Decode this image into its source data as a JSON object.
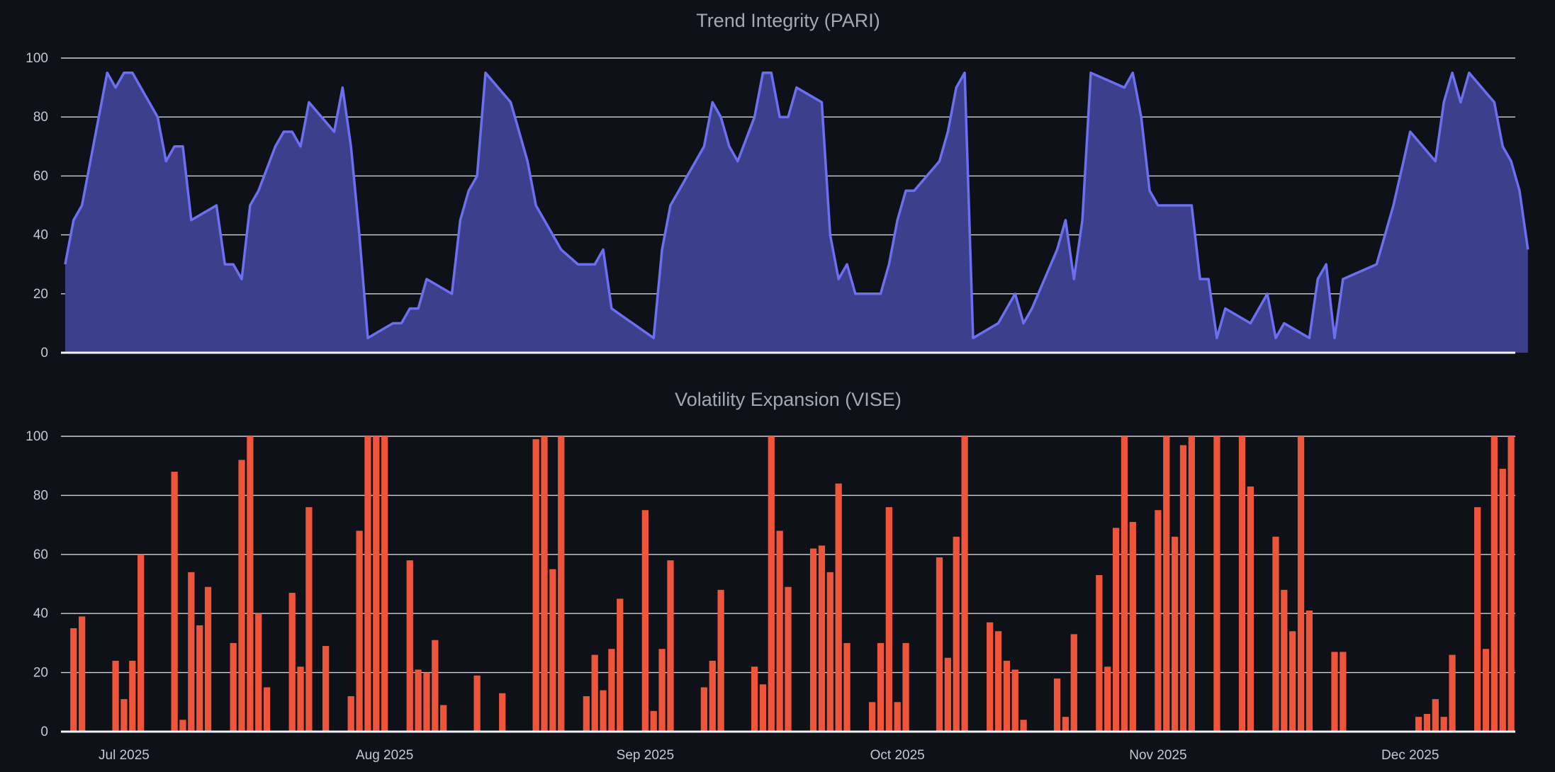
{
  "colors": {
    "background": "#0e1117",
    "area_line": "#6c6ff0",
    "area_fill": "#3b3f8c",
    "bar": "#ef553b"
  },
  "chart_data": [
    {
      "type": "area",
      "title": "Trend Integrity (PARI)",
      "ylim": [
        0,
        100
      ],
      "yticks": [
        0,
        20,
        40,
        60,
        80,
        100
      ],
      "grid": true,
      "x_start": "2025-06-24",
      "x_end": "2025-12-12",
      "xticks": [
        {
          "date": "2025-07-01",
          "label": "Jul 2025"
        },
        {
          "date": "2025-08-01",
          "label": "Aug 2025"
        },
        {
          "date": "2025-09-01",
          "label": "Sep 2025"
        },
        {
          "date": "2025-10-01",
          "label": "Oct 2025"
        },
        {
          "date": "2025-11-01",
          "label": "Nov 2025"
        },
        {
          "date": "2025-12-01",
          "label": "Dec 2025"
        }
      ],
      "x_tick_labels_visible": false,
      "points": [
        [
          "2025-06-24",
          30
        ],
        [
          "2025-06-25",
          45
        ],
        [
          "2025-06-26",
          50
        ],
        [
          "2025-06-27",
          65
        ],
        [
          "2025-06-28",
          80
        ],
        [
          "2025-06-29",
          95
        ],
        [
          "2025-06-30",
          90
        ],
        [
          "2025-07-01",
          95
        ],
        [
          "2025-07-02",
          95
        ],
        [
          "2025-07-05",
          80
        ],
        [
          "2025-07-06",
          65
        ],
        [
          "2025-07-07",
          70
        ],
        [
          "2025-07-08",
          70
        ],
        [
          "2025-07-09",
          45
        ],
        [
          "2025-07-12",
          50
        ],
        [
          "2025-07-13",
          30
        ],
        [
          "2025-07-14",
          30
        ],
        [
          "2025-07-15",
          25
        ],
        [
          "2025-07-16",
          50
        ],
        [
          "2025-07-17",
          55
        ],
        [
          "2025-07-19",
          70
        ],
        [
          "2025-07-20",
          75
        ],
        [
          "2025-07-21",
          75
        ],
        [
          "2025-07-22",
          70
        ],
        [
          "2025-07-23",
          85
        ],
        [
          "2025-07-26",
          75
        ],
        [
          "2025-07-27",
          90
        ],
        [
          "2025-07-28",
          70
        ],
        [
          "2025-07-29",
          40
        ],
        [
          "2025-07-30",
          5
        ],
        [
          "2025-08-02",
          10
        ],
        [
          "2025-08-03",
          10
        ],
        [
          "2025-08-04",
          15
        ],
        [
          "2025-08-05",
          15
        ],
        [
          "2025-08-06",
          25
        ],
        [
          "2025-08-09",
          20
        ],
        [
          "2025-08-10",
          45
        ],
        [
          "2025-08-11",
          55
        ],
        [
          "2025-08-12",
          60
        ],
        [
          "2025-08-13",
          95
        ],
        [
          "2025-08-16",
          85
        ],
        [
          "2025-08-18",
          65
        ],
        [
          "2025-08-19",
          50
        ],
        [
          "2025-08-22",
          35
        ],
        [
          "2025-08-24",
          30
        ],
        [
          "2025-08-26",
          30
        ],
        [
          "2025-08-27",
          35
        ],
        [
          "2025-08-28",
          15
        ],
        [
          "2025-09-02",
          5
        ],
        [
          "2025-09-03",
          35
        ],
        [
          "2025-09-04",
          50
        ],
        [
          "2025-09-05",
          55
        ],
        [
          "2025-09-08",
          70
        ],
        [
          "2025-09-09",
          85
        ],
        [
          "2025-09-10",
          80
        ],
        [
          "2025-09-11",
          70
        ],
        [
          "2025-09-12",
          65
        ],
        [
          "2025-09-14",
          80
        ],
        [
          "2025-09-15",
          95
        ],
        [
          "2025-09-16",
          95
        ],
        [
          "2025-09-17",
          80
        ],
        [
          "2025-09-18",
          80
        ],
        [
          "2025-09-19",
          90
        ],
        [
          "2025-09-22",
          85
        ],
        [
          "2025-09-23",
          40
        ],
        [
          "2025-09-24",
          25
        ],
        [
          "2025-09-25",
          30
        ],
        [
          "2025-09-26",
          20
        ],
        [
          "2025-09-29",
          20
        ],
        [
          "2025-09-30",
          30
        ],
        [
          "2025-10-01",
          45
        ],
        [
          "2025-10-02",
          55
        ],
        [
          "2025-10-03",
          55
        ],
        [
          "2025-10-06",
          65
        ],
        [
          "2025-10-07",
          75
        ],
        [
          "2025-10-08",
          90
        ],
        [
          "2025-10-09",
          95
        ],
        [
          "2025-10-10",
          5
        ],
        [
          "2025-10-13",
          10
        ],
        [
          "2025-10-15",
          20
        ],
        [
          "2025-10-16",
          10
        ],
        [
          "2025-10-17",
          15
        ],
        [
          "2025-10-20",
          35
        ],
        [
          "2025-10-21",
          45
        ],
        [
          "2025-10-22",
          25
        ],
        [
          "2025-10-23",
          45
        ],
        [
          "2025-10-24",
          95
        ],
        [
          "2025-10-28",
          90
        ],
        [
          "2025-10-29",
          95
        ],
        [
          "2025-10-30",
          80
        ],
        [
          "2025-10-31",
          55
        ],
        [
          "2025-11-01",
          50
        ],
        [
          "2025-11-05",
          50
        ],
        [
          "2025-11-06",
          25
        ],
        [
          "2025-11-07",
          25
        ],
        [
          "2025-11-08",
          5
        ],
        [
          "2025-11-09",
          15
        ],
        [
          "2025-11-12",
          10
        ],
        [
          "2025-11-14",
          20
        ],
        [
          "2025-11-15",
          5
        ],
        [
          "2025-11-16",
          10
        ],
        [
          "2025-11-19",
          5
        ],
        [
          "2025-11-20",
          25
        ],
        [
          "2025-11-21",
          30
        ],
        [
          "2025-11-22",
          5
        ],
        [
          "2025-11-23",
          25
        ],
        [
          "2025-11-27",
          30
        ],
        [
          "2025-11-28",
          40
        ],
        [
          "2025-11-29",
          50
        ],
        [
          "2025-12-01",
          75
        ],
        [
          "2025-12-04",
          65
        ],
        [
          "2025-12-05",
          85
        ],
        [
          "2025-12-06",
          95
        ],
        [
          "2025-12-07",
          85
        ],
        [
          "2025-12-08",
          95
        ],
        [
          "2025-12-11",
          85
        ],
        [
          "2025-12-12",
          70
        ],
        [
          "2025-12-13",
          65
        ],
        [
          "2025-12-14",
          55
        ],
        [
          "2025-12-15",
          35
        ]
      ]
    },
    {
      "type": "bar",
      "title": "Volatility Expansion (VISE)",
      "ylim": [
        0,
        100
      ],
      "yticks": [
        0,
        20,
        40,
        60,
        80,
        100
      ],
      "grid": true,
      "x_start": "2025-06-24",
      "x_end": "2025-12-12",
      "xticks": [
        {
          "date": "2025-07-01",
          "label": "Jul 2025"
        },
        {
          "date": "2025-08-01",
          "label": "Aug 2025"
        },
        {
          "date": "2025-09-01",
          "label": "Sep 2025"
        },
        {
          "date": "2025-10-01",
          "label": "Oct 2025"
        },
        {
          "date": "2025-11-01",
          "label": "Nov 2025"
        },
        {
          "date": "2025-12-01",
          "label": "Dec 2025"
        }
      ],
      "points": [
        [
          "2025-06-25",
          35
        ],
        [
          "2025-06-26",
          39
        ],
        [
          "2025-06-30",
          24
        ],
        [
          "2025-07-01",
          11
        ],
        [
          "2025-07-02",
          24
        ],
        [
          "2025-07-03",
          60
        ],
        [
          "2025-07-07",
          88
        ],
        [
          "2025-07-08",
          4
        ],
        [
          "2025-07-09",
          54
        ],
        [
          "2025-07-10",
          36
        ],
        [
          "2025-07-11",
          49
        ],
        [
          "2025-07-14",
          30
        ],
        [
          "2025-07-15",
          92
        ],
        [
          "2025-07-16",
          100
        ],
        [
          "2025-07-17",
          40
        ],
        [
          "2025-07-18",
          15
        ],
        [
          "2025-07-21",
          47
        ],
        [
          "2025-07-22",
          22
        ],
        [
          "2025-07-23",
          76
        ],
        [
          "2025-07-25",
          29
        ],
        [
          "2025-07-28",
          12
        ],
        [
          "2025-07-29",
          68
        ],
        [
          "2025-07-30",
          100
        ],
        [
          "2025-07-31",
          100
        ],
        [
          "2025-08-01",
          100
        ],
        [
          "2025-08-04",
          58
        ],
        [
          "2025-08-05",
          21
        ],
        [
          "2025-08-06",
          20
        ],
        [
          "2025-08-07",
          31
        ],
        [
          "2025-08-08",
          9
        ],
        [
          "2025-08-12",
          19
        ],
        [
          "2025-08-15",
          13
        ],
        [
          "2025-08-19",
          99
        ],
        [
          "2025-08-20",
          100
        ],
        [
          "2025-08-21",
          55
        ],
        [
          "2025-08-22",
          100
        ],
        [
          "2025-08-25",
          12
        ],
        [
          "2025-08-26",
          26
        ],
        [
          "2025-08-27",
          14
        ],
        [
          "2025-08-28",
          28
        ],
        [
          "2025-08-29",
          45
        ],
        [
          "2025-09-01",
          75
        ],
        [
          "2025-09-02",
          7
        ],
        [
          "2025-09-03",
          28
        ],
        [
          "2025-09-04",
          58
        ],
        [
          "2025-09-08",
          15
        ],
        [
          "2025-09-09",
          24
        ],
        [
          "2025-09-10",
          48
        ],
        [
          "2025-09-14",
          22
        ],
        [
          "2025-09-15",
          16
        ],
        [
          "2025-09-16",
          100
        ],
        [
          "2025-09-17",
          68
        ],
        [
          "2025-09-18",
          49
        ],
        [
          "2025-09-21",
          62
        ],
        [
          "2025-09-22",
          63
        ],
        [
          "2025-09-23",
          54
        ],
        [
          "2025-09-24",
          84
        ],
        [
          "2025-09-25",
          30
        ],
        [
          "2025-09-28",
          10
        ],
        [
          "2025-09-29",
          30
        ],
        [
          "2025-09-30",
          76
        ],
        [
          "2025-10-01",
          10
        ],
        [
          "2025-10-02",
          30
        ],
        [
          "2025-10-06",
          59
        ],
        [
          "2025-10-07",
          25
        ],
        [
          "2025-10-08",
          66
        ],
        [
          "2025-10-09",
          100
        ],
        [
          "2025-10-12",
          37
        ],
        [
          "2025-10-13",
          34
        ],
        [
          "2025-10-14",
          24
        ],
        [
          "2025-10-15",
          21
        ],
        [
          "2025-10-16",
          4
        ],
        [
          "2025-10-20",
          18
        ],
        [
          "2025-10-21",
          5
        ],
        [
          "2025-10-22",
          33
        ],
        [
          "2025-10-25",
          53
        ],
        [
          "2025-10-26",
          22
        ],
        [
          "2025-10-27",
          69
        ],
        [
          "2025-10-28",
          100
        ],
        [
          "2025-10-29",
          71
        ],
        [
          "2025-11-01",
          75
        ],
        [
          "2025-11-02",
          100
        ],
        [
          "2025-11-03",
          66
        ],
        [
          "2025-11-04",
          97
        ],
        [
          "2025-11-05",
          100
        ],
        [
          "2025-11-08",
          100
        ],
        [
          "2025-11-11",
          100
        ],
        [
          "2025-11-12",
          83
        ],
        [
          "2025-11-15",
          66
        ],
        [
          "2025-11-16",
          48
        ],
        [
          "2025-11-17",
          34
        ],
        [
          "2025-11-18",
          100
        ],
        [
          "2025-11-19",
          41
        ],
        [
          "2025-11-22",
          27
        ],
        [
          "2025-11-23",
          27
        ],
        [
          "2025-12-02",
          5
        ],
        [
          "2025-12-03",
          6
        ],
        [
          "2025-12-04",
          11
        ],
        [
          "2025-12-05",
          5
        ],
        [
          "2025-12-06",
          26
        ],
        [
          "2025-12-09",
          76
        ],
        [
          "2025-12-10",
          28
        ],
        [
          "2025-12-11",
          100
        ],
        [
          "2025-12-12",
          89
        ],
        [
          "2025-12-13",
          100
        ]
      ]
    }
  ]
}
